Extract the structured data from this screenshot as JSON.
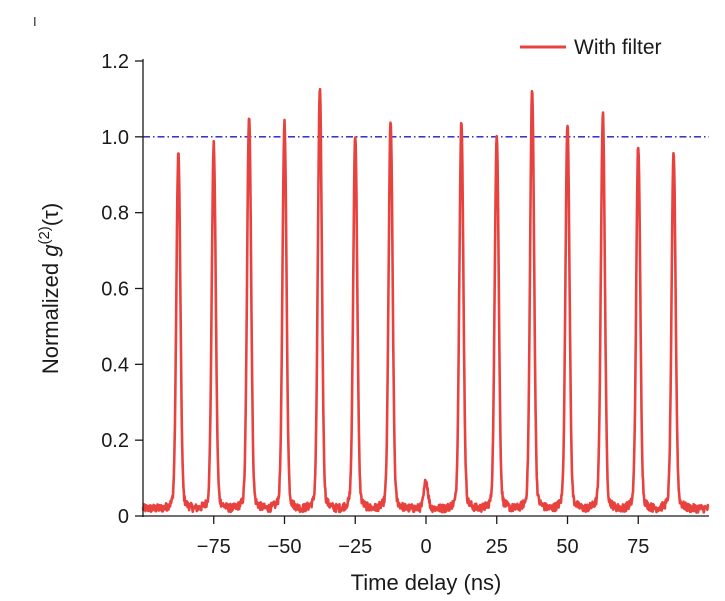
{
  "chart_data": {
    "type": "line",
    "title": "",
    "xlabel": "Time delay (ns)",
    "ylabel_prefix": "Normalized ",
    "ylabel_g": "g",
    "ylabel_sup": "(2)",
    "ylabel_arg": "(τ)",
    "xlim": [
      -100,
      100
    ],
    "ylim": [
      0,
      1.2
    ],
    "x_ticks": [
      -75,
      -50,
      -25,
      0,
      25,
      50,
      75
    ],
    "x_tick_labels": [
      "−75",
      "−50",
      "−25",
      "0",
      "25",
      "50",
      "75"
    ],
    "y_ticks": [
      0,
      0.2,
      0.4,
      0.6,
      0.8,
      1.0,
      1.2
    ],
    "y_tick_labels": [
      "0",
      "0.2",
      "0.4",
      "0.6",
      "0.8",
      "1.0",
      "1.2"
    ],
    "reference_line": {
      "y": 1.0,
      "style": "dash-dot",
      "color": "#1a1acc"
    },
    "series": [
      {
        "name": "With filter",
        "color": "#e8423f",
        "baseline": 0.02,
        "peak_width_ns": 0.7,
        "peaks": [
          {
            "x": -87.5,
            "y": 0.93
          },
          {
            "x": -75,
            "y": 0.95
          },
          {
            "x": -62.5,
            "y": 1.03
          },
          {
            "x": -50,
            "y": 1.01
          },
          {
            "x": -37.5,
            "y": 1.09
          },
          {
            "x": -25,
            "y": 0.98
          },
          {
            "x": -12.5,
            "y": 1.01
          },
          {
            "x": 0,
            "y": 0.09
          },
          {
            "x": 12.5,
            "y": 1.01
          },
          {
            "x": 25,
            "y": 0.98
          },
          {
            "x": 37.5,
            "y": 1.09
          },
          {
            "x": 50,
            "y": 1.01
          },
          {
            "x": 62.5,
            "y": 1.03
          },
          {
            "x": 75,
            "y": 0.95
          },
          {
            "x": 87.5,
            "y": 0.93
          }
        ]
      }
    ],
    "legend": {
      "position": "top-right",
      "entries": [
        "With filter"
      ]
    },
    "grid": false
  }
}
